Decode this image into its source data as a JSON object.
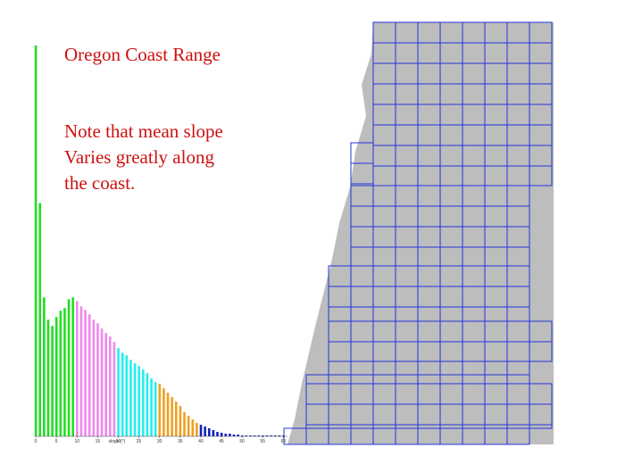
{
  "title": "Oregon Coast Range",
  "note": [
    "Note that mean slope",
    "Varies greatly along",
    "the coast."
  ],
  "chart_data": {
    "type": "bar",
    "x_label": "slope (°)",
    "xlim": [
      0,
      61
    ],
    "xticks": [
      0,
      5,
      10,
      15,
      20,
      25,
      30,
      35,
      40,
      45,
      50,
      55,
      60
    ],
    "values": [
      439,
      262,
      156,
      131,
      124,
      134,
      141,
      144,
      154,
      156,
      152,
      146,
      142,
      137,
      131,
      127,
      121,
      116,
      112,
      106,
      99,
      94,
      91,
      86,
      82,
      79,
      75,
      71,
      65,
      61,
      59,
      54,
      49,
      44,
      39,
      34,
      27,
      23,
      19,
      15,
      13,
      11,
      9,
      7,
      5,
      4,
      3,
      3,
      2,
      2,
      1,
      1,
      1,
      1,
      1,
      1,
      1,
      1,
      1,
      1,
      1
    ],
    "colors": [
      "#22dd22",
      "#ee88ee",
      "#22eeee",
      "#f0a020",
      "#1122bb"
    ],
    "ylim": [
      0,
      440
    ]
  }
}
